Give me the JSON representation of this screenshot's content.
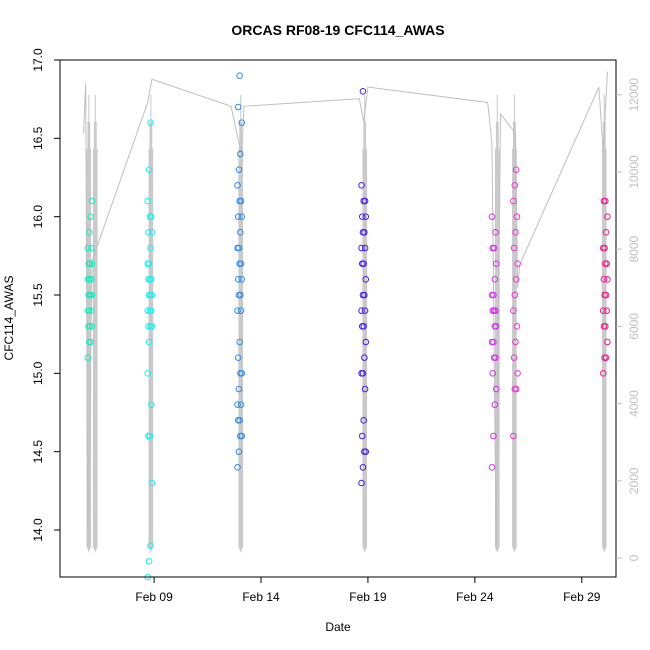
{
  "chart_data": {
    "type": "scatter",
    "title": "ORCAS RF08-19 CFC114_AWAS",
    "xlabel": "Date",
    "ylabel": "CFC114_AWAS",
    "x_ticks": [
      {
        "label": "Feb 09",
        "day": 9
      },
      {
        "label": "Feb 14",
        "day": 14
      },
      {
        "label": "Feb 19",
        "day": 19
      },
      {
        "label": "Feb 24",
        "day": 24
      },
      {
        "label": "Feb 29",
        "day": 29
      }
    ],
    "xlim_day": [
      4.6,
      30.6
    ],
    "ylim": [
      13.7,
      17.0
    ],
    "y_ticks": [
      14.0,
      14.5,
      15.0,
      15.5,
      16.0,
      16.5,
      17.0
    ],
    "y2_ticks": [
      0,
      2000,
      4000,
      6000,
      8000,
      10000,
      12000
    ],
    "y2lim": [
      0,
      12900
    ],
    "grid": false,
    "series": [
      {
        "day": 6.0,
        "color": "#21e8c0",
        "values": [
          15.1,
          15.2,
          15.2,
          15.3,
          15.3,
          15.3,
          15.4,
          15.4,
          15.4,
          15.5,
          15.5,
          15.5,
          15.5,
          15.6,
          15.6,
          15.6,
          15.6,
          15.7,
          15.7,
          15.7,
          15.8,
          15.8,
          15.9,
          16.0,
          16.1
        ]
      },
      {
        "day": 8.8,
        "color": "#19f0f0",
        "values": [
          13.7,
          13.8,
          13.9,
          14.3,
          14.6,
          14.6,
          14.8,
          15.0,
          15.2,
          15.3,
          15.3,
          15.3,
          15.4,
          15.4,
          15.4,
          15.5,
          15.5,
          15.5,
          15.6,
          15.6,
          15.6,
          15.7,
          15.7,
          15.8,
          15.9,
          15.9,
          16.0,
          16.0,
          16.1,
          16.3,
          16.6
        ]
      },
      {
        "day": 13.0,
        "color": "#2f8ce8",
        "values": [
          14.4,
          14.5,
          14.6,
          14.6,
          14.7,
          14.7,
          14.8,
          14.8,
          14.9,
          15.0,
          15.0,
          15.1,
          15.2,
          15.4,
          15.4,
          15.5,
          15.5,
          15.6,
          15.6,
          15.7,
          15.7,
          15.8,
          15.8,
          15.9,
          16.0,
          16.0,
          16.1,
          16.1,
          16.2,
          16.3,
          16.4,
          16.6,
          16.7,
          16.9
        ]
      },
      {
        "day": 18.8,
        "color": "#4a1ee6",
        "values": [
          14.3,
          14.4,
          14.5,
          14.5,
          14.6,
          14.7,
          14.9,
          15.0,
          15.0,
          15.1,
          15.2,
          15.3,
          15.3,
          15.4,
          15.4,
          15.5,
          15.5,
          15.6,
          15.7,
          15.7,
          15.8,
          15.8,
          15.9,
          15.9,
          16.0,
          16.0,
          16.1,
          16.1,
          16.2,
          16.8
        ]
      },
      {
        "day": 24.9,
        "color": "#d433ee",
        "values": [
          14.4,
          14.6,
          14.8,
          14.9,
          15.0,
          15.1,
          15.1,
          15.2,
          15.2,
          15.3,
          15.3,
          15.4,
          15.4,
          15.4,
          15.5,
          15.5,
          15.6,
          15.7,
          15.8,
          15.8,
          15.9,
          16.0
        ]
      },
      {
        "day": 25.9,
        "color": "#e83ad6",
        "values": [
          14.6,
          14.9,
          14.9,
          15.0,
          15.1,
          15.2,
          15.3,
          15.4,
          15.5,
          15.6,
          15.7,
          15.8,
          15.9,
          16.0,
          16.1,
          16.2,
          16.3
        ]
      },
      {
        "day": 30.1,
        "color": "#f01c8c",
        "values": [
          15.0,
          15.1,
          15.1,
          15.2,
          15.3,
          15.3,
          15.4,
          15.4,
          15.5,
          15.5,
          15.6,
          15.6,
          15.7,
          15.7,
          15.8,
          15.8,
          15.9,
          16.0,
          16.1,
          16.1
        ]
      }
    ],
    "altitude": {
      "color": "#bfbfbf",
      "axis": "right",
      "path_day": [
        5.7,
        5.8,
        5.9,
        6.1,
        8.7,
        8.9,
        12.6,
        13.1,
        13.2,
        18.6,
        18.8,
        19.0,
        24.6,
        24.8,
        25.0,
        25.2,
        25.9,
        26.0,
        26.1,
        29.8,
        30.0,
        30.2
      ],
      "path_alt": [
        11000,
        12300,
        300,
        7700,
        11800,
        12400,
        11700,
        10400,
        11700,
        11900,
        11300,
        12200,
        11800,
        10700,
        200,
        11500,
        11000,
        7000,
        7600,
        12200,
        10500,
        12600
      ],
      "profile_days": [
        5.95,
        6.25,
        8.85,
        13.05,
        18.85,
        25.05,
        25.85,
        30.05
      ]
    }
  }
}
